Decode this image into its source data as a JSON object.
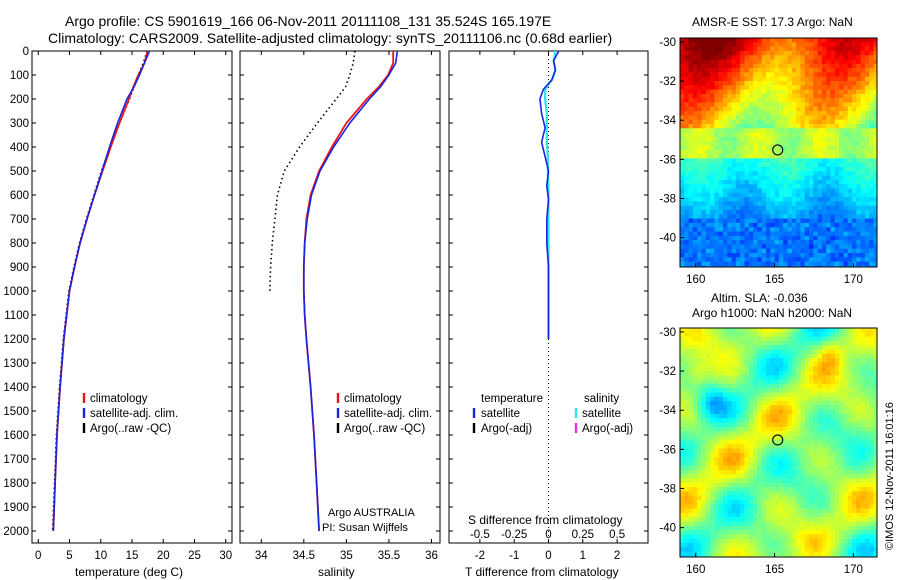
{
  "header": {
    "line1": "Argo profile: CS 5901619_166 06-Nov-2011 20111108_131 35.524S 165.197E",
    "line2": "Climatology: CARS2009. Satellite-adjusted climatology: synTS_20111106.nc (0.68d earlier)"
  },
  "colors": {
    "climatology": "#e8151b",
    "satellite": "#1b24e0",
    "argo": "#000000",
    "sal_satellite": "#2ee6ee",
    "sal_argo": "#e82ee0"
  },
  "chart_data": [
    {
      "type": "line",
      "panel": "temperature",
      "xlabel": "temperature (deg C)",
      "xlim": [
        -1,
        31
      ],
      "x_ticks": [
        0,
        5,
        10,
        15,
        20,
        25,
        30
      ],
      "ylim": [
        2050,
        0
      ],
      "y_ticks": [
        0,
        100,
        200,
        300,
        400,
        500,
        600,
        700,
        800,
        900,
        1000,
        1100,
        1200,
        1300,
        1400,
        1500,
        1600,
        1700,
        1800,
        1900,
        2000
      ],
      "legend": [
        "climatology",
        "satellite-adj. clim.",
        "Argo(..raw -QC)"
      ],
      "depth": [
        0,
        50,
        100,
        150,
        200,
        300,
        400,
        500,
        600,
        700,
        800,
        900,
        1000,
        1200,
        1400,
        1600,
        1800,
        2000
      ],
      "series": [
        {
          "name": "climatology",
          "values": [
            17.5,
            17.0,
            16.0,
            15.2,
            14.5,
            13.0,
            11.6,
            10.3,
            9.0,
            7.8,
            6.7,
            5.8,
            5.0,
            4.1,
            3.5,
            3.0,
            2.7,
            2.4
          ]
        },
        {
          "name": "satellite-adj. clim.",
          "values": [
            17.8,
            17.0,
            16.2,
            15.3,
            14.2,
            12.7,
            11.4,
            10.2,
            9.0,
            7.8,
            6.7,
            5.8,
            5.0,
            4.1,
            3.5,
            3.0,
            2.7,
            2.4
          ]
        },
        {
          "name": "Argo(..raw -QC)",
          "values": [
            17.4,
            16.8,
            16.0,
            15.3,
            14.6,
            13.0,
            11.5,
            10.1,
            8.9,
            7.7,
            6.6,
            5.7,
            4.9,
            4.0,
            3.4,
            2.9,
            2.6,
            2.3
          ]
        }
      ]
    },
    {
      "type": "line",
      "panel": "salinity",
      "xlabel": "salinity",
      "xlim": [
        33.75,
        36.1
      ],
      "x_ticks": [
        34,
        34.5,
        35,
        35.5,
        36
      ],
      "x_tick_labels": [
        "34",
        "34.5",
        "35",
        "35.5",
        "36"
      ],
      "ylim": [
        2050,
        0
      ],
      "legend": [
        "climatology",
        "satellite-adj. clim.",
        "Argo(..raw -QC)"
      ],
      "note1": "Argo AUSTRALIA",
      "note2": "PI: Susan Wijffels",
      "depth": [
        0,
        50,
        100,
        150,
        200,
        300,
        400,
        500,
        600,
        700,
        800,
        900,
        1000,
        1100,
        1200,
        1400,
        1600,
        1800,
        2000
      ],
      "series": [
        {
          "name": "climatology",
          "values": [
            35.55,
            35.55,
            35.49,
            35.38,
            35.24,
            35.0,
            34.83,
            34.68,
            34.58,
            34.53,
            34.51,
            34.5,
            34.5,
            34.51,
            34.53,
            34.58,
            34.62,
            34.65,
            34.68
          ]
        },
        {
          "name": "satellite-adj. clim.",
          "values": [
            35.6,
            35.58,
            35.5,
            35.4,
            35.27,
            35.04,
            34.85,
            34.69,
            34.59,
            34.54,
            34.51,
            34.5,
            34.5,
            34.51,
            34.53,
            34.58,
            34.62,
            34.65,
            34.68
          ]
        },
        {
          "name": "Argo(..raw -QC)",
          "values": [
            35.1,
            35.08,
            35.04,
            34.99,
            34.88,
            34.66,
            34.45,
            34.27,
            34.19,
            34.16,
            34.13,
            34.11,
            34.1
          ]
        }
      ]
    },
    {
      "type": "line",
      "panel": "differences",
      "xlabel": "T difference from climatology",
      "xlabel_top": "S difference from climatology",
      "xlim": [
        -2.9,
        2.9
      ],
      "x_ticks": [
        -2,
        -1,
        0,
        1,
        2
      ],
      "top_ticks": [
        "-0.5",
        "-0.25",
        "0",
        "0.25",
        "0.5"
      ],
      "ylim": [
        2050,
        0
      ],
      "legend_col1": [
        "temperature",
        "satellite",
        "Argo(-adj)"
      ],
      "legend_col2": [
        "salinity",
        "satellite",
        "Argo(-adj)"
      ],
      "depth": [
        0,
        40,
        80,
        120,
        160,
        200,
        260,
        320,
        380,
        440,
        500,
        560,
        620,
        700,
        800,
        900,
        1000,
        1100,
        1200
      ],
      "series": [
        {
          "name": "temperature satellite",
          "values": [
            0.3,
            0.15,
            0.2,
            0.1,
            -0.15,
            -0.25,
            -0.2,
            -0.1,
            -0.2,
            -0.1,
            0.0,
            -0.05,
            0.0,
            -0.05,
            -0.05,
            0.0,
            0.0,
            0.0,
            0.0
          ]
        },
        {
          "name": "salinity satellite",
          "values": [
            0.2,
            0.15,
            0.2,
            0.1,
            -0.1,
            -0.1,
            -0.05,
            -0.05,
            -0.05,
            -0.02,
            -0.02,
            0.0,
            0.0,
            0.0,
            0.0,
            0.0,
            0.0,
            0.0,
            0.0
          ]
        }
      ]
    },
    {
      "type": "heatmap",
      "panel": "sst_map",
      "title": "AMSR-E SST: 17.3 Argo: NaN",
      "xlim": [
        159,
        171.5
      ],
      "ylim": [
        -41.5,
        -29.8
      ],
      "x_ticks": [
        160,
        165,
        170
      ],
      "y_ticks": [
        -30,
        -32,
        -34,
        -36,
        -38,
        -40
      ],
      "marker": {
        "lon": 165.2,
        "lat": -35.52
      }
    },
    {
      "type": "heatmap",
      "panel": "sla_map",
      "title1": "Altim. SLA: -0.036",
      "title2": "Argo h1000: NaN h2000: NaN",
      "xlim": [
        159,
        171.5
      ],
      "ylim": [
        -41.5,
        -29.8
      ],
      "x_ticks": [
        160,
        165,
        170
      ],
      "y_ticks": [
        -30,
        -32,
        -34,
        -36,
        -38,
        -40
      ],
      "marker": {
        "lon": 165.2,
        "lat": -35.52
      }
    }
  ],
  "footer": {
    "stamp": "©IMOS 12-Nov-2011 16:01:16"
  }
}
